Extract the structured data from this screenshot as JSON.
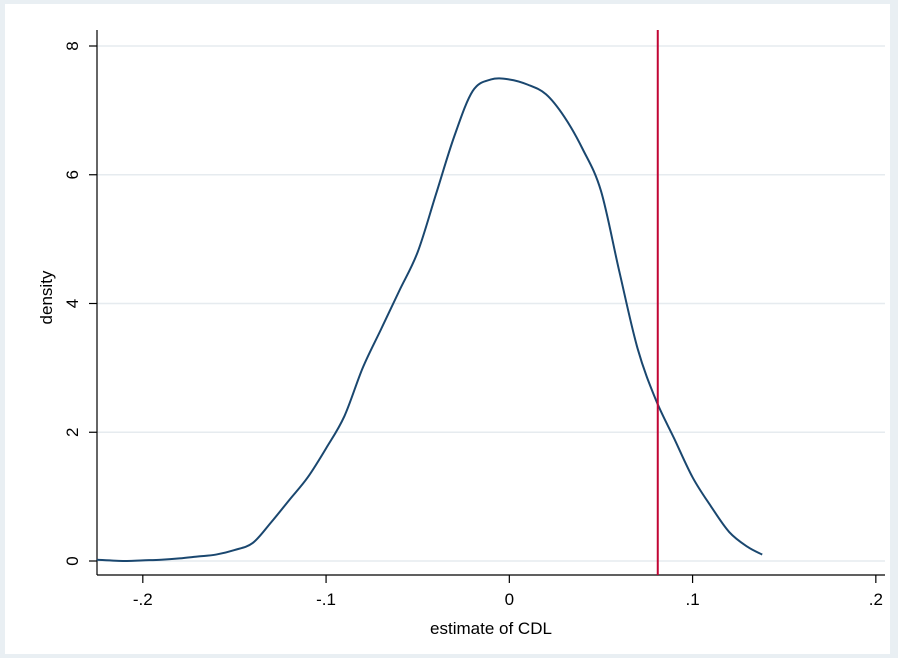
{
  "chart_data": {
    "type": "line",
    "title": "",
    "xlabel": "estimate of CDL",
    "ylabel": "density",
    "xlim": [
      -0.225,
      0.205
    ],
    "ylim": [
      0,
      8
    ],
    "x_ticks": [
      -0.2,
      -0.1,
      0,
      0.1,
      0.2
    ],
    "x_tick_labels": [
      "-.2",
      "-.1",
      "0",
      ".1",
      ".2"
    ],
    "y_ticks": [
      0,
      2,
      4,
      6,
      8
    ],
    "y_tick_labels": [
      "0",
      "2",
      "4",
      "6",
      "8"
    ],
    "grid": "horizontal",
    "legend": "none",
    "colors": {
      "outer_background": "#e9eff3",
      "plot_background": "#ffffff",
      "gridline": "#e6ebef",
      "curve": "#1a476f",
      "reference_line": "#c10534",
      "axis": "#000000"
    },
    "series": [
      {
        "x": [
          -0.225,
          -0.21,
          -0.2,
          -0.19,
          -0.18,
          -0.17,
          -0.16,
          -0.15,
          -0.14,
          -0.13,
          -0.12,
          -0.11,
          -0.1,
          -0.09,
          -0.08,
          -0.07,
          -0.06,
          -0.05,
          -0.04,
          -0.03,
          -0.02,
          -0.01,
          0,
          0.01,
          0.02,
          0.03,
          0.04,
          0.05,
          0.06,
          0.07,
          0.08,
          0.09,
          0.1,
          0.11,
          0.12,
          0.13,
          0.138
        ],
        "y": [
          0.02,
          0.0,
          0.01,
          0.02,
          0.04,
          0.07,
          0.1,
          0.17,
          0.28,
          0.6,
          0.95,
          1.3,
          1.75,
          2.25,
          3.0,
          3.6,
          4.2,
          4.8,
          5.7,
          6.6,
          7.3,
          7.48,
          7.48,
          7.4,
          7.25,
          6.9,
          6.4,
          5.75,
          4.5,
          3.3,
          2.5,
          1.9,
          1.3,
          0.85,
          0.45,
          0.22,
          0.1
        ]
      }
    ],
    "reference_line": {
      "x": 0.081
    }
  }
}
